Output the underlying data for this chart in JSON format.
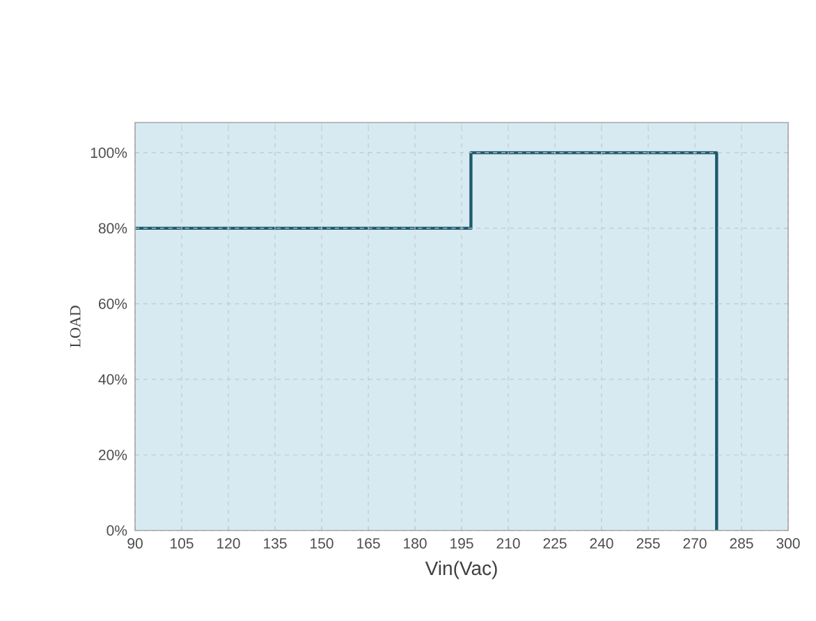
{
  "chart_data": {
    "type": "line",
    "xlabel": "Vin(Vac)",
    "ylabel": "LOAD",
    "series": [
      {
        "color": "#1d5a6e",
        "x": [
          90,
          198,
          198,
          277,
          277
        ],
        "values": [
          80,
          80,
          100,
          100,
          0
        ]
      }
    ],
    "xlim": [
      90,
      300
    ],
    "xticks": [
      90,
      105,
      120,
      135,
      150,
      165,
      180,
      195,
      210,
      225,
      240,
      255,
      270,
      285,
      300
    ],
    "ylim": [
      0,
      108
    ],
    "yticks": [
      {
        "value": 0,
        "label": "0%"
      },
      {
        "value": 20,
        "label": "20%"
      },
      {
        "value": 40,
        "label": "40%"
      },
      {
        "value": 60,
        "label": "60%"
      },
      {
        "value": 80,
        "label": "80%"
      },
      {
        "value": 100,
        "label": "100%"
      }
    ],
    "grid": true,
    "marker": "none",
    "line_style": "solid"
  }
}
